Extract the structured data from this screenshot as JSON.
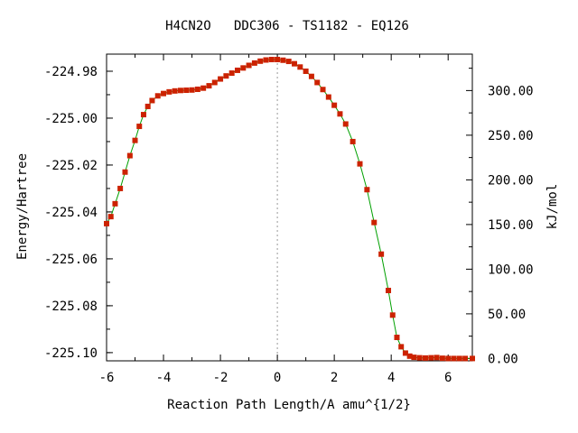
{
  "chart_data": {
    "type": "line",
    "title": "H4CN2O   DDC306 - TS1182 - EQ126",
    "xlabel": "Reaction Path Length/A amu^{1/2}",
    "ylabel": "Energy/Hartree",
    "y2label": "kJ/mol",
    "xlim": [
      -6.0,
      6.85
    ],
    "ylim": [
      -225.1035,
      -224.9727
    ],
    "x_ticks": [
      "-6",
      "-4",
      "-2",
      "0",
      "2",
      "4",
      "6"
    ],
    "y_ticks": [
      "-224.98",
      "-225.00",
      "-225.02",
      "-225.04",
      "-225.06",
      "-225.08",
      "-225.10"
    ],
    "y2_ticks": [
      "300.00",
      "250.00",
      "200.00",
      "150.00",
      "100.00",
      "50.00",
      "0.00"
    ],
    "grid": false,
    "vline_x": 0,
    "series": [
      {
        "line_color": "#00a000",
        "marker_color": "#cc2200",
        "points": [
          [
            -6.0,
            -225.045
          ],
          [
            -5.85,
            -225.042
          ],
          [
            -5.7,
            -225.0365
          ],
          [
            -5.52,
            -225.03
          ],
          [
            -5.35,
            -225.023
          ],
          [
            -5.18,
            -225.016
          ],
          [
            -5.0,
            -225.0095
          ],
          [
            -4.85,
            -225.0035
          ],
          [
            -4.7,
            -224.9985
          ],
          [
            -4.55,
            -224.995
          ],
          [
            -4.4,
            -224.9925
          ],
          [
            -4.2,
            -224.9905
          ],
          [
            -4.0,
            -224.9895
          ],
          [
            -3.8,
            -224.9888
          ],
          [
            -3.6,
            -224.9884
          ],
          [
            -3.4,
            -224.9882
          ],
          [
            -3.2,
            -224.9881
          ],
          [
            -3.0,
            -224.988
          ],
          [
            -2.8,
            -224.9877
          ],
          [
            -2.6,
            -224.9872
          ],
          [
            -2.4,
            -224.9862
          ],
          [
            -2.2,
            -224.9848
          ],
          [
            -2.0,
            -224.9833
          ],
          [
            -1.8,
            -224.982
          ],
          [
            -1.6,
            -224.9808
          ],
          [
            -1.4,
            -224.9796
          ],
          [
            -1.2,
            -224.9786
          ],
          [
            -1.0,
            -224.9775
          ],
          [
            -0.8,
            -224.9765
          ],
          [
            -0.6,
            -224.9757
          ],
          [
            -0.4,
            -224.9752
          ],
          [
            -0.2,
            -224.975
          ],
          [
            0.0,
            -224.975
          ],
          [
            0.2,
            -224.9753
          ],
          [
            0.4,
            -224.9758
          ],
          [
            0.6,
            -224.9768
          ],
          [
            0.8,
            -224.9782
          ],
          [
            1.0,
            -224.98
          ],
          [
            1.2,
            -224.9822
          ],
          [
            1.4,
            -224.9848
          ],
          [
            1.6,
            -224.9878
          ],
          [
            1.8,
            -224.991
          ],
          [
            2.0,
            -224.9945
          ],
          [
            2.2,
            -224.9982
          ],
          [
            2.4,
            -225.0025
          ],
          [
            2.65,
            -225.01
          ],
          [
            2.9,
            -225.0195
          ],
          [
            3.15,
            -225.0305
          ],
          [
            3.4,
            -225.0445
          ],
          [
            3.65,
            -225.058
          ],
          [
            3.9,
            -225.0735
          ],
          [
            4.05,
            -225.084
          ],
          [
            4.2,
            -225.0935
          ],
          [
            4.35,
            -225.0975
          ],
          [
            4.5,
            -225.1002
          ],
          [
            4.65,
            -225.1015
          ],
          [
            4.8,
            -225.102
          ],
          [
            5.0,
            -225.1022
          ],
          [
            5.2,
            -225.1023
          ],
          [
            5.4,
            -225.1022
          ],
          [
            5.6,
            -225.1021
          ],
          [
            5.8,
            -225.1024
          ],
          [
            6.0,
            -225.1025
          ],
          [
            6.2,
            -225.1025
          ],
          [
            6.4,
            -225.1025
          ],
          [
            6.6,
            -225.1025
          ],
          [
            6.85,
            -225.1025
          ]
        ]
      }
    ]
  }
}
